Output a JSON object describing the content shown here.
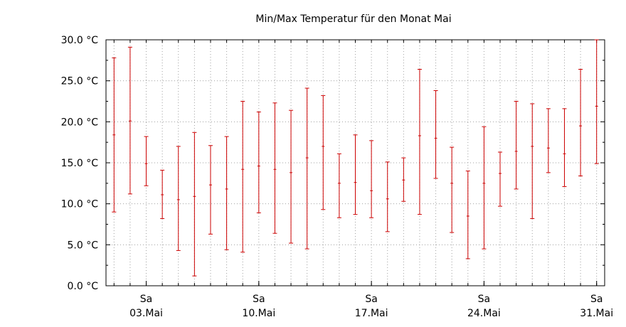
{
  "chart_data": {
    "type": "errorbar",
    "title": "Min/Max Temperatur für den Monat Mai",
    "xlabel": "",
    "ylabel": "",
    "xlim": [
      0.5,
      31.5
    ],
    "ylim": [
      0,
      30
    ],
    "y_ticks": [
      {
        "value": 0,
        "label": "0.0 °C"
      },
      {
        "value": 5,
        "label": "5.0 °C"
      },
      {
        "value": 10,
        "label": "10.0 °C"
      },
      {
        "value": 15,
        "label": "15.0 °C"
      },
      {
        "value": 20,
        "label": "20.0 °C"
      },
      {
        "value": 25,
        "label": "25.0 °C"
      },
      {
        "value": 30,
        "label": "30.0 °C"
      }
    ],
    "x_ticks": [
      {
        "day": 3,
        "weekday": "Sa",
        "date": "03.Mai"
      },
      {
        "day": 10,
        "weekday": "Sa",
        "date": "10.Mai"
      },
      {
        "day": 17,
        "weekday": "Sa",
        "date": "17.Mai"
      },
      {
        "day": 24,
        "weekday": "Sa",
        "date": "24.Mai"
      },
      {
        "day": 31,
        "weekday": "Sa",
        "date": "31.Mai"
      }
    ],
    "grid": true,
    "color": "#cc0000",
    "points": [
      {
        "day": 1,
        "min": 9.0,
        "mid": 18.4,
        "max": 27.8
      },
      {
        "day": 2,
        "min": 11.2,
        "mid": 20.1,
        "max": 29.1
      },
      {
        "day": 3,
        "min": 12.2,
        "mid": 14.9,
        "max": 18.2
      },
      {
        "day": 4,
        "min": 8.2,
        "mid": 11.1,
        "max": 14.1
      },
      {
        "day": 5,
        "min": 4.3,
        "mid": 10.5,
        "max": 17.0
      },
      {
        "day": 6,
        "min": 1.2,
        "mid": 10.9,
        "max": 18.7
      },
      {
        "day": 7,
        "min": 6.3,
        "mid": 12.3,
        "max": 17.1
      },
      {
        "day": 8,
        "min": 4.4,
        "mid": 11.8,
        "max": 18.2
      },
      {
        "day": 9,
        "min": 4.1,
        "mid": 14.2,
        "max": 22.5
      },
      {
        "day": 10,
        "min": 8.9,
        "mid": 14.6,
        "max": 21.2
      },
      {
        "day": 11,
        "min": 6.4,
        "mid": 14.2,
        "max": 22.3
      },
      {
        "day": 12,
        "min": 5.2,
        "mid": 13.8,
        "max": 21.4
      },
      {
        "day": 13,
        "min": 4.5,
        "mid": 15.6,
        "max": 24.1
      },
      {
        "day": 14,
        "min": 9.3,
        "mid": 17.0,
        "max": 23.2
      },
      {
        "day": 15,
        "min": 8.3,
        "mid": 12.5,
        "max": 16.1
      },
      {
        "day": 16,
        "min": 8.7,
        "mid": 12.6,
        "max": 18.4
      },
      {
        "day": 17,
        "min": 8.3,
        "mid": 11.6,
        "max": 17.7
      },
      {
        "day": 18,
        "min": 6.6,
        "mid": 10.6,
        "max": 15.1
      },
      {
        "day": 19,
        "min": 10.3,
        "mid": 12.9,
        "max": 15.6
      },
      {
        "day": 20,
        "min": 8.7,
        "mid": 18.3,
        "max": 26.4
      },
      {
        "day": 21,
        "min": 13.1,
        "mid": 18.0,
        "max": 23.8
      },
      {
        "day": 22,
        "min": 6.5,
        "mid": 12.5,
        "max": 16.9
      },
      {
        "day": 23,
        "min": 3.3,
        "mid": 8.5,
        "max": 14.0
      },
      {
        "day": 24,
        "min": 4.5,
        "mid": 12.5,
        "max": 19.4
      },
      {
        "day": 25,
        "min": 9.7,
        "mid": 13.7,
        "max": 16.3
      },
      {
        "day": 26,
        "min": 11.8,
        "mid": 16.4,
        "max": 22.5
      },
      {
        "day": 27,
        "min": 8.2,
        "mid": 17.0,
        "max": 22.2
      },
      {
        "day": 28,
        "min": 13.8,
        "mid": 16.8,
        "max": 21.6
      },
      {
        "day": 29,
        "min": 12.1,
        "mid": 16.1,
        "max": 21.6
      },
      {
        "day": 30,
        "min": 13.4,
        "mid": 19.5,
        "max": 26.4
      },
      {
        "day": 31,
        "min": 14.9,
        "mid": 21.9,
        "max": 30.0
      }
    ]
  }
}
